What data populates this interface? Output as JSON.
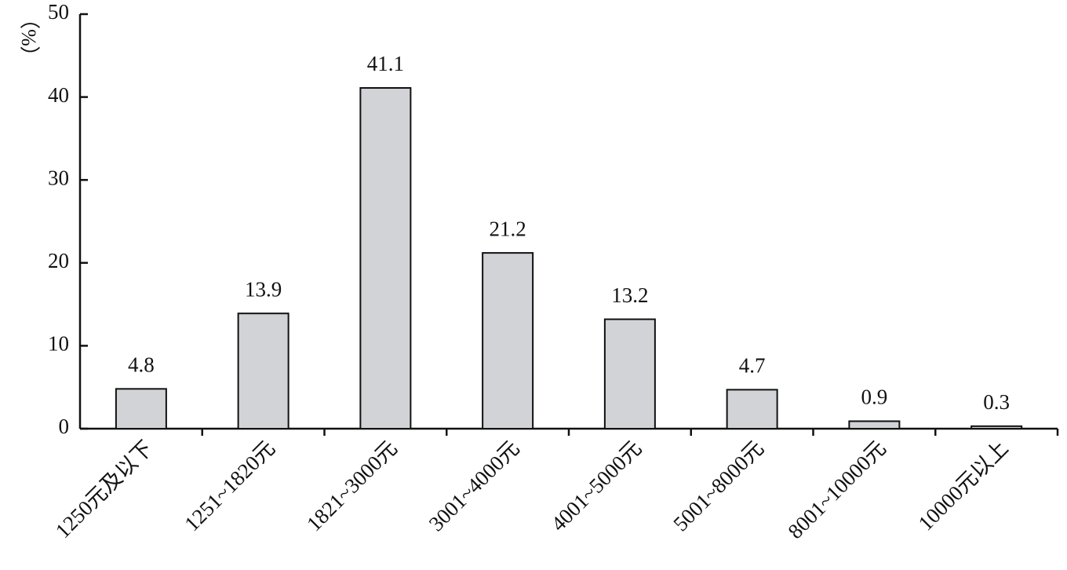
{
  "chart_data": {
    "type": "bar",
    "ylabel": "（%）",
    "categories": [
      "1250元及以下",
      "1251~1820元",
      "1821~3000元",
      "3001~4000元",
      "4001~5000元",
      "5001~8000元",
      "8001~10000元",
      "10000元以上"
    ],
    "values": [
      4.8,
      13.9,
      41.1,
      21.2,
      13.2,
      4.7,
      0.9,
      0.3
    ],
    "color": "#d1d3d6",
    "ylim": [
      0,
      50
    ],
    "yticks": [
      0,
      10,
      20,
      30,
      40,
      50
    ],
    "grid": false
  }
}
